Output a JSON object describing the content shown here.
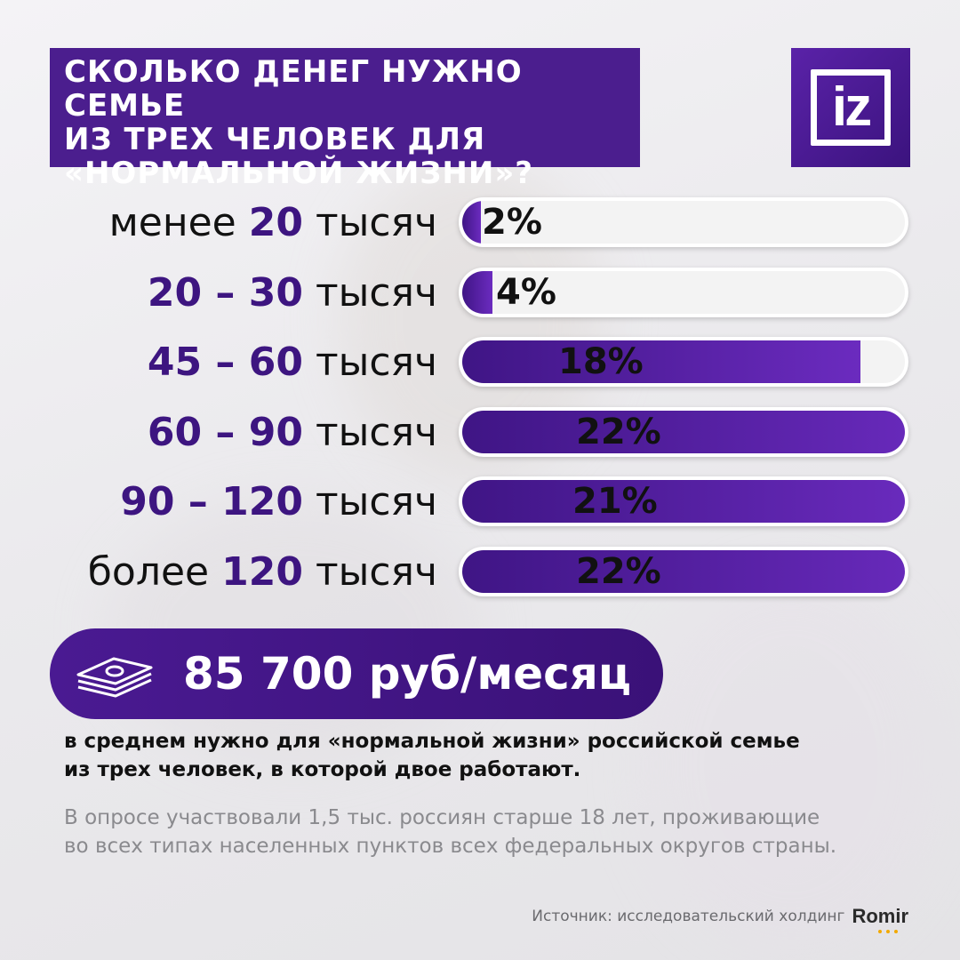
{
  "title": {
    "lines": [
      "СКОЛЬКО ДЕНЕГ НУЖНО СЕМЬЕ",
      "ИЗ ТРЕХ ЧЕЛОВЕК ДЛЯ",
      "«НОРМАЛЬНОЙ ЖИЗНИ»?"
    ]
  },
  "logo": {
    "text": "iz"
  },
  "chart_data": {
    "type": "bar",
    "title": "СКОЛЬКО ДЕНЕГ НУЖНО СЕМЬЕ ИЗ ТРЕХ ЧЕЛОВЕК ДЛЯ «НОРМАЛЬНОЙ ЖИЗНИ»?",
    "orientation": "horizontal",
    "categories": [
      "менее 20 тысяч",
      "20 – 30 тысяч",
      "45 – 60 тысяч",
      "60 – 90 тысяч",
      "90 – 120 тысяч",
      "более 120 тысяч"
    ],
    "values": [
      2,
      4,
      18,
      22,
      21,
      22
    ],
    "unit": "%",
    "xlim": [
      0,
      100
    ],
    "bars": [
      {
        "prefix": "менее",
        "number": "20",
        "suffix": "тысяч",
        "value": 2,
        "label": "2%"
      },
      {
        "prefix": "",
        "number": "20 – 30",
        "suffix": "тысяч",
        "value": 4,
        "label": "4%"
      },
      {
        "prefix": "",
        "number": "45 – 60",
        "suffix": "тысяч",
        "value": 18,
        "label": "18%"
      },
      {
        "prefix": "",
        "number": "60 – 90",
        "suffix": "тысяч",
        "value": 22,
        "label": "22%"
      },
      {
        "prefix": "",
        "number": "90 – 120",
        "suffix": "тысяч",
        "value": 21,
        "label": "21%"
      },
      {
        "prefix": "более",
        "number": "120",
        "suffix": "тысяч",
        "value": 22,
        "label": "22%"
      }
    ],
    "colors": {
      "bar_start": "#3f1585",
      "bar_end": "#6b2bbf",
      "track": "#f3f3f3"
    }
  },
  "summary": {
    "icon": "money-stack-icon",
    "value": "85 700 руб/месяц",
    "description_lines": [
      "в среднем нужно для «нормальной жизни» российской семье",
      "из трех человек, в которой двое работают."
    ]
  },
  "note": {
    "lines": [
      "В опросе участвовали 1,5 тыс. россиян старше 18 лет, проживающие",
      "во всех типах населенных пунктов всех федеральных округов страны."
    ]
  },
  "source": {
    "label": "Источник: исследовательский холдинг",
    "brand": "Romir"
  },
  "colors": {
    "brand": "#4b1e8e",
    "accent_text": "#3d1580",
    "muted": "#8a8a8e"
  }
}
